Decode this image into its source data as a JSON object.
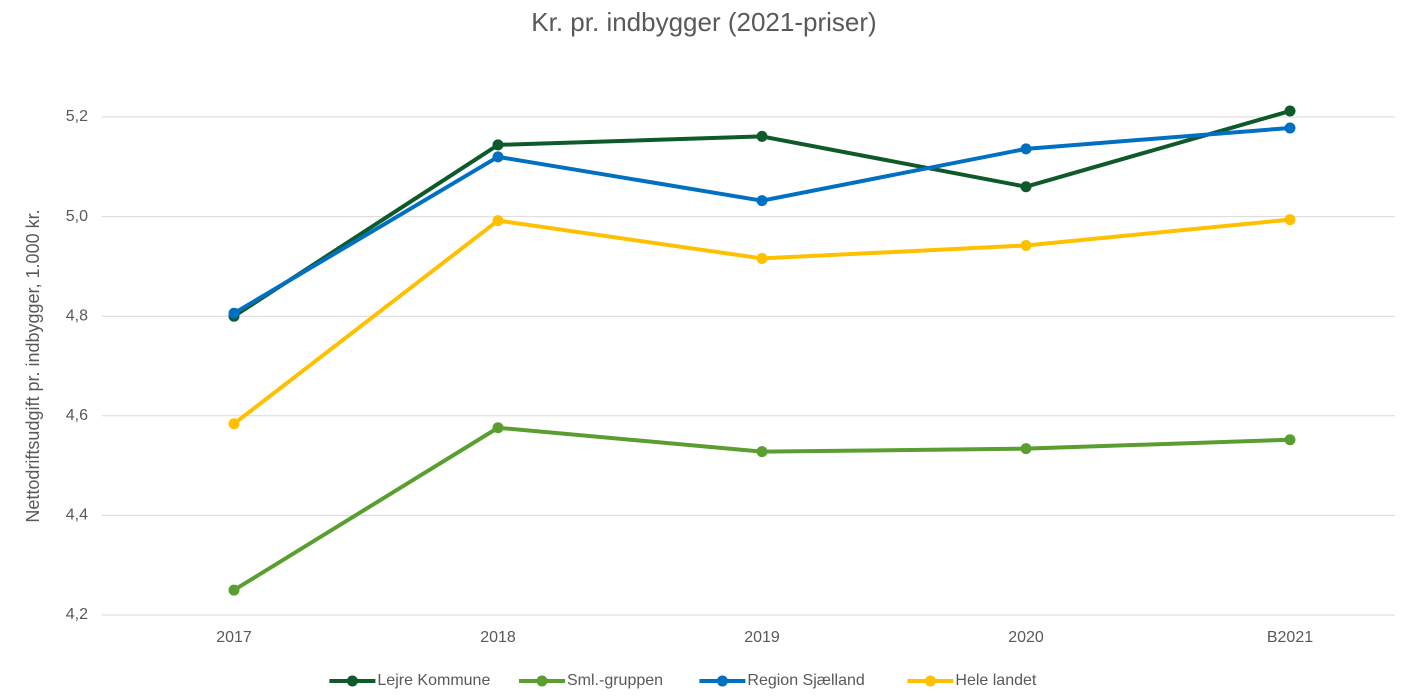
{
  "chart_data": {
    "type": "line",
    "title": "Kr. pr. indbygger (2021-priser)",
    "y_label": "Nettodriftsudgift pr. indbygger, 1.000 kr.",
    "categories": [
      "2017",
      "2018",
      "2019",
      "2020",
      "B2021"
    ],
    "series": [
      {
        "name": "Lejre Kommune",
        "color": "#0f5a2a",
        "values": [
          4.8,
          5.144,
          5.161,
          5.06,
          5.212
        ]
      },
      {
        "name": "Sml.-gruppen",
        "color": "#5a9e2f",
        "values": [
          4.25,
          4.576,
          4.528,
          4.534,
          4.552
        ]
      },
      {
        "name": "Region Sjælland",
        "color": "#0070c0",
        "values": [
          4.806,
          5.12,
          5.032,
          5.136,
          5.178
        ]
      },
      {
        "name": "Hele landet",
        "color": "#ffc000",
        "values": [
          4.584,
          4.992,
          4.916,
          4.942,
          4.994
        ]
      }
    ],
    "ylim": [
      4.2,
      5.2
    ],
    "yticks": [
      {
        "value": 4.2,
        "label": "4,2"
      },
      {
        "value": 4.4,
        "label": "4,4"
      },
      {
        "value": 4.6,
        "label": "4,6"
      },
      {
        "value": 4.8,
        "label": "4,8"
      },
      {
        "value": 5.0,
        "label": "5,0"
      },
      {
        "value": 5.2,
        "label": "5,2"
      }
    ],
    "grid": true,
    "legend": "bottom"
  }
}
